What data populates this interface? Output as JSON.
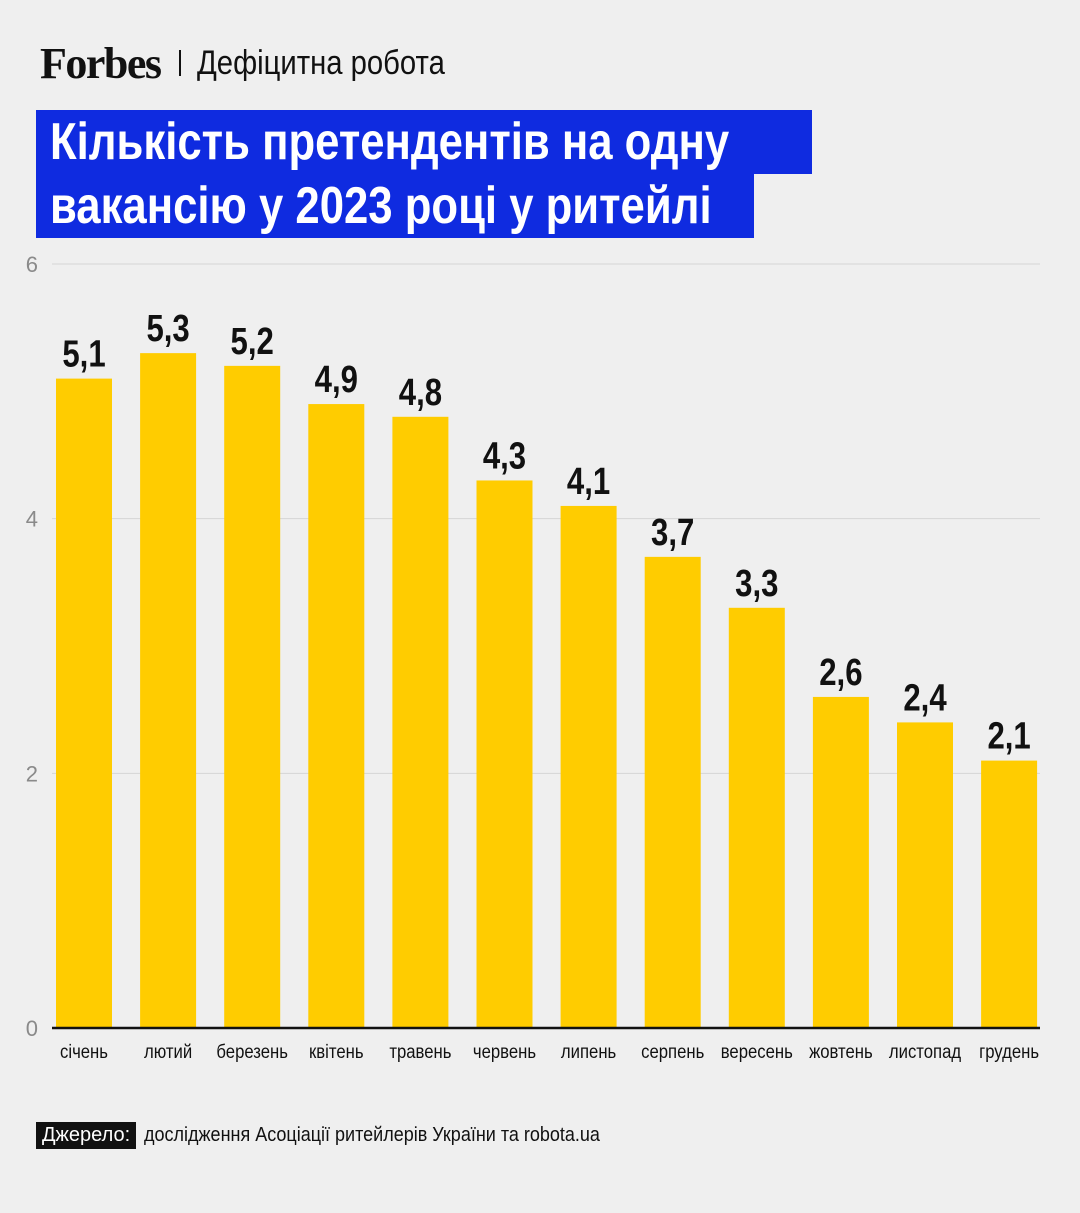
{
  "header": {
    "logo": "Forbes",
    "section": "Дефіцитна робота"
  },
  "title": {
    "line1": "Кількість претендентів на одну",
    "line2": "вакансію у 2023 році у ритейлі"
  },
  "colors": {
    "bar": "#ffcc00",
    "title_bg": "#0f2be0",
    "background": "#efefef"
  },
  "chart_data": {
    "type": "bar",
    "title": "Кількість претендентів на одну вакансію у 2023 році у ритейлі",
    "categories": [
      "січень",
      "лютий",
      "березень",
      "квітень",
      "травень",
      "червень",
      "липень",
      "серпень",
      "вересень",
      "жовтень",
      "листопад",
      "грудень"
    ],
    "values": [
      5.1,
      5.3,
      5.2,
      4.9,
      4.8,
      4.3,
      4.1,
      3.7,
      3.3,
      2.6,
      2.4,
      2.1
    ],
    "value_labels": [
      "5,1",
      "5,3",
      "5,2",
      "4,9",
      "4,8",
      "4,3",
      "4,1",
      "3,7",
      "3,3",
      "2,6",
      "2,4",
      "2,1"
    ],
    "yticks": [
      0,
      2,
      4,
      6
    ],
    "ylim": [
      0,
      6
    ],
    "xlabel": "",
    "ylabel": "",
    "grid": true
  },
  "footer": {
    "source_label": "Джерело:",
    "source_text": "дослідження Асоціації ритейлерів України та robota.ua"
  }
}
